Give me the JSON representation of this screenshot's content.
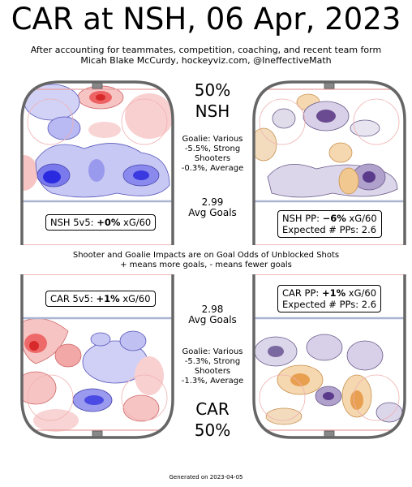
{
  "title": "CAR at NSH, 06 Apr, 2023",
  "subtitle_line1": "After accounting for teammates, competition, coaching, and recent team form",
  "subtitle_line2": "Micah Blake McCurdy, hockeyviz.com, @IneffectiveMath",
  "top": {
    "pct": "50%",
    "team": "NSH",
    "goalie": [
      "Goalie: Various",
      "-5.5%, Strong",
      "Shooters",
      "-0.3%, Average"
    ],
    "avg_num": "2.99",
    "avg_label": "Avg Goals"
  },
  "middle_note": [
    "Shooter and Goalie Impacts are on Goal Odds of Unblocked Shots",
    "+ means more goals, - means fewer goals"
  ],
  "bottom": {
    "avg_num": "2.98",
    "avg_label": "Avg Goals",
    "goalie": [
      "Goalie: Various",
      "-5.3%, Strong",
      "Shooters",
      "-1.3%, Average"
    ],
    "team": "CAR",
    "pct": "50%"
  },
  "labels": {
    "nsh_5v5_pre": "NSH 5v5: ",
    "nsh_5v5_val": "+0%",
    "nsh_5v5_post": " xG/60",
    "nsh_pp_pre": "NSH PP: ",
    "nsh_pp_val": "−6%",
    "nsh_pp_post": " xG/60",
    "nsh_pp_expected": "Expected # PPs: 2.6",
    "car_5v5_pre": "CAR 5v5: ",
    "car_5v5_val": "+1%",
    "car_5v5_post": " xG/60",
    "car_pp_pre": "CAR PP: ",
    "car_pp_val": "+1%",
    "car_pp_post": " xG/60",
    "car_pp_expected": "Expected # PPs: 2.6"
  },
  "colors": {
    "excess": "#e03a3a",
    "deficit": "#3a3ae8",
    "pp_excess": "#e89a3a",
    "pp_deficit": "#5a3a8a",
    "board": "#666666",
    "goal_line": "#e8a0a0",
    "blue_line": "#a8b4d0"
  },
  "footer": "Generated on 2023-04-05"
}
